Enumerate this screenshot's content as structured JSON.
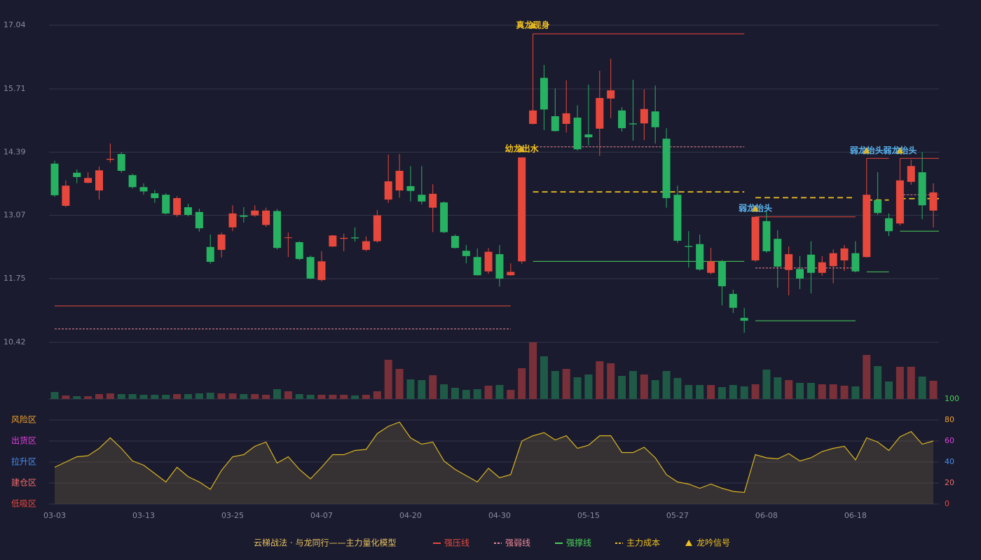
{
  "chart_data": {
    "type": "candlestick",
    "categories": [
      "03-03",
      null,
      null,
      null,
      null,
      null,
      null,
      null,
      "03-13",
      null,
      null,
      null,
      null,
      null,
      null,
      null,
      "03-25",
      null,
      null,
      null,
      null,
      null,
      null,
      null,
      "04-07",
      null,
      null,
      null,
      null,
      null,
      null,
      null,
      "04-20",
      null,
      null,
      null,
      null,
      null,
      null,
      null,
      "04-30",
      null,
      null,
      null,
      null,
      null,
      null,
      null,
      "05-15",
      null,
      null,
      null,
      null,
      null,
      null,
      null,
      "05-27",
      null,
      null,
      null,
      null,
      null,
      null,
      null,
      "06-08",
      null,
      null,
      null,
      null,
      null,
      null,
      null,
      "06-18",
      null,
      null,
      null,
      null,
      null,
      null,
      null
    ],
    "open": [
      14.15,
      13.27,
      13.96,
      13.75,
      13.59,
      14.23,
      14.35,
      13.91,
      13.66,
      13.53,
      13.5,
      13.08,
      13.24,
      13.14,
      12.41,
      12.35,
      12.82,
      13.07,
      13.07,
      12.87,
      13.16,
      12.6,
      12.51,
      12.2,
      11.72,
      12.42,
      12.58,
      12.61,
      12.35,
      12.53,
      13.4,
      13.59,
      13.68,
      13.5,
      13.23,
      13.34,
      12.64,
      12.33,
      12.2,
      11.9,
      12.26,
      11.82,
      12.11,
      14.98,
      15.94,
      15.14,
      14.98,
      15.11,
      14.76,
      14.88,
      15.51,
      15.26,
      14.99,
      14.99,
      15.24,
      14.67,
      13.5,
      12.43,
      12.47,
      11.87,
      12.1,
      11.43,
      10.93,
      12.13,
      12.95,
      12.58,
      11.93,
      11.95,
      12.25,
      11.87,
      12.01,
      12.13,
      12.28,
      12.2,
      13.39,
      13.01,
      12.9,
      13.77,
      13.97,
      13.17
    ],
    "high": [
      14.21,
      13.8,
      14.03,
      13.97,
      14.09,
      14.57,
      14.39,
      13.94,
      13.74,
      13.6,
      13.53,
      13.47,
      13.31,
      13.21,
      12.67,
      12.71,
      13.28,
      13.24,
      13.28,
      13.23,
      13.2,
      12.71,
      12.53,
      12.23,
      12.32,
      12.66,
      12.69,
      12.82,
      12.63,
      13.18,
      14.34,
      14.35,
      14.1,
      14.1,
      13.72,
      13.36,
      12.67,
      12.45,
      12.38,
      12.39,
      12.45,
      12.07,
      14.28,
      15.26,
      16.21,
      15.72,
      15.89,
      15.37,
      15.8,
      16.09,
      16.34,
      15.33,
      15.9,
      15.7,
      15.78,
      14.89,
      13.69,
      12.74,
      12.67,
      12.39,
      12.14,
      11.52,
      11.14,
      13.04,
      13.17,
      12.76,
      12.42,
      12.22,
      12.53,
      12.22,
      12.36,
      12.45,
      12.53,
      13.5,
      13.97,
      13.11,
      13.83,
      14.23,
      14.39,
      13.74
    ],
    "low": [
      13.46,
      13.24,
      13.74,
      13.74,
      13.4,
      14.17,
      13.96,
      13.63,
      13.5,
      13.33,
      13.09,
      13.04,
      13.05,
      12.73,
      12.06,
      12.19,
      12.74,
      12.92,
      13.04,
      12.83,
      12.36,
      12.2,
      12.13,
      11.74,
      11.69,
      12.41,
      12.32,
      12.52,
      12.32,
      12.5,
      13.33,
      13.44,
      13.36,
      13.3,
      12.72,
      12.7,
      12.38,
      12.07,
      11.81,
      11.85,
      11.58,
      11.81,
      12.06,
      14.97,
      14.85,
      14.82,
      14.8,
      14.42,
      14.53,
      14.31,
      15.1,
      14.82,
      14.63,
      14.64,
      14.57,
      13.23,
      12.49,
      11.98,
      11.91,
      11.84,
      11.19,
      11.03,
      10.62,
      12.1,
      12.29,
      11.56,
      11.4,
      11.53,
      11.44,
      11.81,
      11.65,
      11.91,
      11.88,
      12.19,
      13.08,
      12.64,
      12.86,
      13.71,
      12.99,
      12.82
    ],
    "close": [
      13.49,
      13.69,
      13.87,
      13.85,
      14.01,
      14.25,
      14.0,
      13.66,
      13.57,
      13.43,
      13.11,
      13.43,
      13.08,
      12.8,
      12.1,
      12.67,
      13.11,
      13.04,
      13.17,
      13.17,
      12.39,
      12.61,
      12.16,
      11.75,
      12.11,
      12.65,
      12.6,
      12.59,
      12.53,
      13.07,
      13.78,
      14.0,
      13.58,
      13.36,
      13.52,
      12.72,
      12.39,
      12.22,
      11.82,
      12.31,
      11.75,
      11.89,
      14.28,
      15.26,
      15.28,
      14.83,
      15.2,
      14.45,
      14.7,
      15.52,
      15.68,
      14.89,
      14.97,
      15.29,
      14.91,
      13.43,
      12.54,
      12.41,
      11.94,
      12.11,
      11.59,
      11.14,
      10.87,
      13.04,
      12.32,
      12.0,
      12.26,
      11.75,
      11.87,
      12.09,
      12.28,
      12.38,
      11.9,
      13.5,
      13.12,
      12.74,
      13.8,
      14.1,
      13.28,
      13.55
    ],
    "up_color": "#e8483c",
    "down_color": "#27b262",
    "ylim": [
      10.42,
      17.04
    ],
    "yticks": [
      17.04,
      15.71,
      14.39,
      13.07,
      11.75,
      10.42
    ],
    "grid": true,
    "volume": [
      10,
      5,
      4,
      4,
      7,
      8,
      7,
      7,
      6,
      6,
      6,
      7,
      7,
      8,
      9,
      8,
      8,
      7,
      7,
      6,
      14,
      11,
      7,
      6,
      6,
      6,
      6,
      5,
      6,
      11,
      56,
      43,
      28,
      27,
      34,
      21,
      16,
      13,
      14,
      19,
      20,
      13,
      44,
      81,
      61,
      40,
      43,
      31,
      35,
      54,
      51,
      33,
      40,
      35,
      27,
      40,
      30,
      20,
      20,
      20,
      17,
      20,
      18,
      21,
      42,
      31,
      27,
      23,
      23,
      21,
      21,
      19,
      18,
      63,
      47,
      25,
      46,
      46,
      32,
      26
    ],
    "volume_ylim": [
      0,
      82
    ],
    "volume_up_color": "#7a3038",
    "volume_down_color": "#1f5a46",
    "segments": [
      [
        0,
        41
      ],
      [
        43,
        62
      ],
      [
        63,
        72
      ],
      [
        73,
        75
      ],
      [
        76,
        79
      ]
    ],
    "lines": [
      {
        "name": "强压线",
        "color": "#e8483c",
        "dash": false,
        "values": [
          11.18,
          16.86,
          13.04,
          14.26,
          14.26
        ]
      },
      {
        "name": "强弱线",
        "color": "#f08a9a",
        "dash": true,
        "values": [
          10.7,
          14.5,
          11.97,
          null,
          13.5
        ]
      },
      {
        "name": "强撑线",
        "color": "#4ad05a",
        "dash": false,
        "values": [
          null,
          12.11,
          10.87,
          11.89,
          12.74
        ]
      },
      {
        "name": "主力成本",
        "color": "#f0c020",
        "dash": true,
        "values": [
          null,
          13.56,
          13.44,
          13.39,
          13.42
        ]
      }
    ],
    "signal": {
      "name": "龙吟信号",
      "color": "#f0c020",
      "points": [
        {
          "index": 43,
          "value": 17.03,
          "label": "真龙现身",
          "color": "#f0c020"
        },
        {
          "index": 42,
          "value": 14.45,
          "label": "幼龙出水",
          "color": "#f0c020"
        },
        {
          "index": 63,
          "value": 13.21,
          "label": "弱龙抬头",
          "color": "#5ab4f0"
        },
        {
          "index": 73,
          "value": 14.42,
          "label": "弱龙抬头",
          "color": "#5ab4f0"
        },
        {
          "index": 76,
          "value": 14.42,
          "label": "弱龙抬头",
          "color": "#5ab4f0"
        }
      ]
    },
    "indicator": {
      "values": [
        35,
        40,
        45,
        46,
        53,
        63,
        53,
        41,
        37,
        29,
        21,
        35,
        26,
        21,
        14,
        32,
        45,
        47,
        55,
        59,
        39,
        45,
        33,
        24,
        35,
        47,
        47,
        51,
        52,
        67,
        74,
        78,
        63,
        57,
        59,
        41,
        33,
        27,
        21,
        34,
        25,
        28,
        60,
        65,
        68,
        61,
        65,
        53,
        56,
        65,
        65,
        49,
        49,
        54,
        44,
        28,
        21,
        19,
        15,
        19,
        15,
        12,
        11,
        47,
        44,
        43,
        48,
        41,
        44,
        50,
        53,
        55,
        42,
        63,
        59,
        51,
        64,
        69,
        57,
        60
      ],
      "color": "#d9b422",
      "fill": "rgba(110,95,60,0.35)",
      "ylim": [
        0,
        100
      ],
      "yticks": [
        0,
        20,
        40,
        60,
        80,
        100
      ],
      "ytick_colors": [
        "#e8483c",
        "#f06a6a",
        "#4a8ef0",
        "#e040e0",
        "#f0a030",
        "#4ad05a"
      ],
      "zones": [
        {
          "value": 80,
          "label": "风险区",
          "color": "#f0a030"
        },
        {
          "value": 60,
          "label": "出货区",
          "color": "#e040e0"
        },
        {
          "value": 40,
          "label": "拉升区",
          "color": "#4a8ef0"
        },
        {
          "value": 20,
          "label": "建仓区",
          "color": "#f06a6a"
        },
        {
          "value": 0,
          "label": "低吸区",
          "color": "#e8483c"
        }
      ]
    },
    "legend_title": "云梯战法 · 与龙同行——主力量化模型"
  }
}
